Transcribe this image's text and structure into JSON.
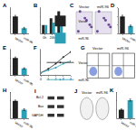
{
  "chart_data": [
    {
      "title": "A",
      "type": "bar",
      "categories": [
        "Vector",
        "miR-96"
      ],
      "values": [
        1.0,
        0.32
      ],
      "errors": [
        0.06,
        0.05
      ],
      "colors": [
        "#222222",
        "#2a9fb5"
      ],
      "ylim": [
        0,
        1.5
      ],
      "yticks": [
        0,
        0.5,
        1,
        1.5
      ],
      "tick_labels": "x"
    },
    {
      "title": "B",
      "type": "bar",
      "categories": [
        "0h",
        "24h",
        "48h"
      ],
      "series": [
        {
          "name": "Vector",
          "color": "#222222",
          "values": [
            1.0,
            1.8,
            2.6
          ]
        },
        {
          "name": "miR-96",
          "color": "#2a9fb5",
          "values": [
            1.0,
            1.3,
            1.6
          ]
        }
      ],
      "ylim": [
        0,
        3
      ],
      "yticks": [
        0,
        1,
        2,
        3
      ],
      "legend": "upper left",
      "tick_labels": "x"
    },
    {
      "title": "D",
      "type": "bar",
      "categories": [
        "Vector",
        "miR-96"
      ],
      "values": [
        1.0,
        0.45
      ],
      "errors": [
        0.07,
        0.05
      ],
      "colors": [
        "#222222",
        "#2a9fb5"
      ],
      "ylim": [
        0,
        1.5
      ],
      "yticks": [
        0,
        0.5,
        1,
        1.5
      ],
      "tick_labels": "x"
    },
    {
      "title": "E",
      "type": "bar",
      "categories": [
        "Vector",
        "miR-96"
      ],
      "values": [
        1.0,
        0.4
      ],
      "errors": [
        0.06,
        0.04
      ],
      "colors": [
        "#222222",
        "#2a9fb5"
      ],
      "ylim": [
        0,
        1.5
      ],
      "yticks": [
        0,
        0.5,
        1,
        1.5
      ],
      "tick_labels": "x"
    },
    {
      "title": "F",
      "type": "line",
      "x": [
        0,
        1,
        2,
        3,
        4
      ],
      "series": [
        {
          "name": "Vector",
          "color": "#222222",
          "values": [
            0.2,
            0.5,
            0.9,
            1.4,
            1.8
          ]
        },
        {
          "name": "miR-96",
          "color": "#2a9fb5",
          "values": [
            0.2,
            0.4,
            0.6,
            0.9,
            1.1
          ]
        }
      ],
      "xlim": [
        0,
        4
      ],
      "xticks": [
        0,
        1,
        2,
        3,
        4
      ],
      "ylim": [
        0,
        2
      ],
      "yticks": [
        0,
        1,
        2
      ],
      "legend": "upper left",
      "marker": "circle",
      "tick_labels": "x"
    },
    {
      "title": "H",
      "type": "bar",
      "categories": [
        "Vector",
        "miR-96"
      ],
      "values": [
        1.0,
        0.5
      ],
      "errors": [
        0.05,
        0.05
      ],
      "colors": [
        "#222222",
        "#2a9fb5"
      ],
      "ylim": [
        0,
        1.5
      ],
      "yticks": [
        0,
        0.5,
        1,
        1.5
      ],
      "tick_labels": "x"
    },
    {
      "title": "K",
      "type": "bar",
      "categories": [
        "Vector",
        "miR-96"
      ],
      "values": [
        1.0,
        2.1
      ],
      "errors": [
        0.08,
        0.12
      ],
      "colors": [
        "#222222",
        "#2a9fb5"
      ],
      "ylim": [
        0,
        3
      ],
      "yticks": [
        0,
        1,
        2,
        3
      ],
      "tick_labels": "x"
    }
  ],
  "image_panels": [
    {
      "title": "C",
      "kind": "micrograph",
      "labels": [
        "Vector",
        "miR-96"
      ]
    },
    {
      "title": "G",
      "kind": "flow",
      "labels": [
        "Vector",
        "miR-96"
      ]
    },
    {
      "title": "I",
      "kind": "blot",
      "labels": [
        "Bcl-2",
        "Bax",
        "GAPDH"
      ]
    },
    {
      "title": "J",
      "kind": "colony",
      "labels": [
        "Vector",
        "miR-96"
      ]
    }
  ]
}
